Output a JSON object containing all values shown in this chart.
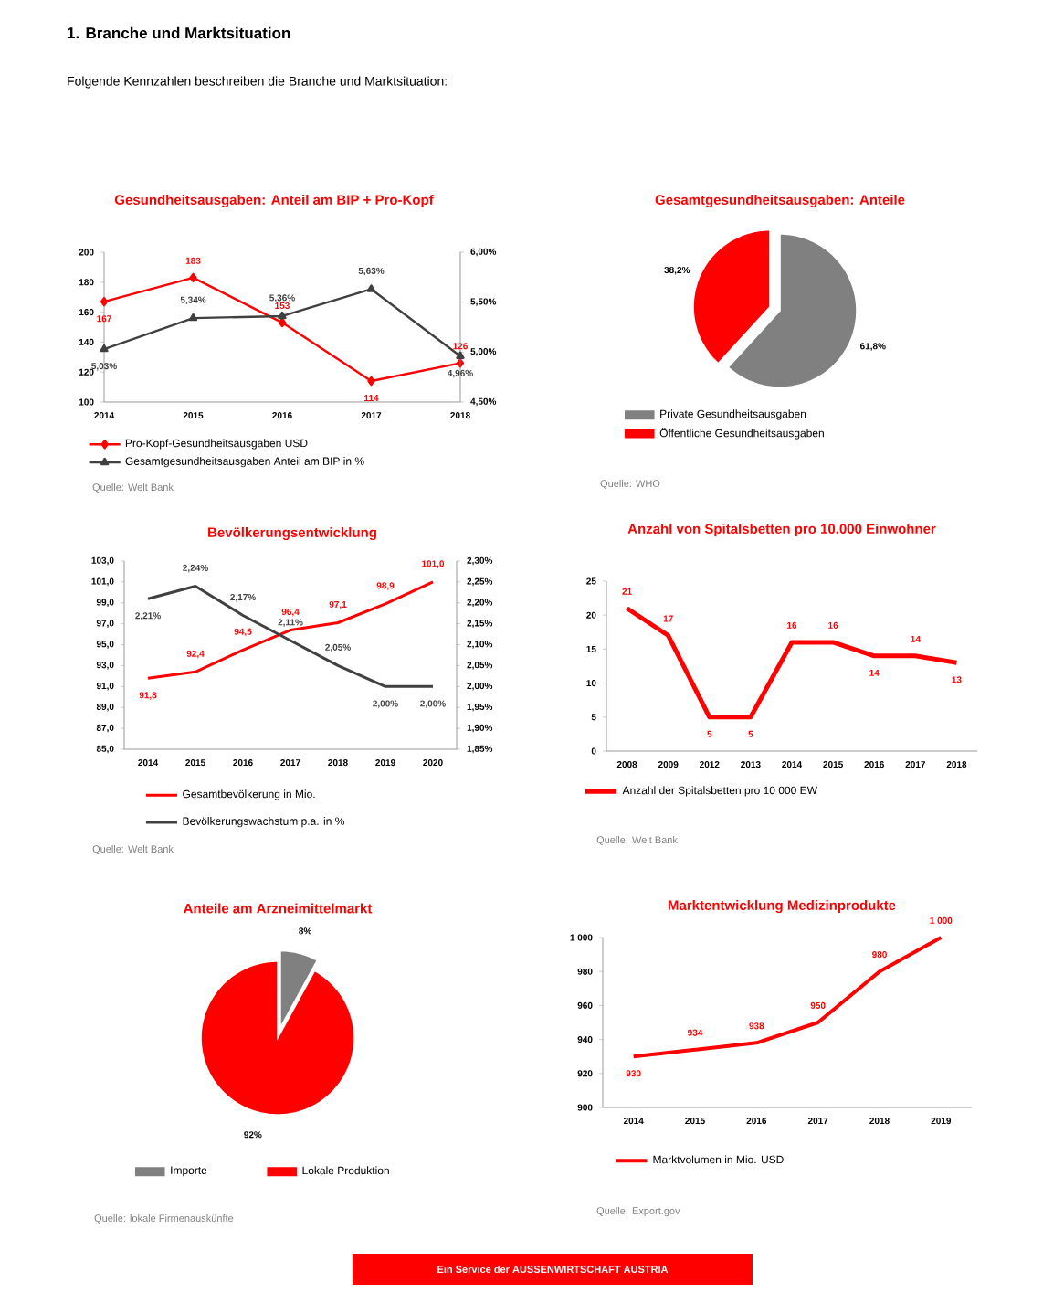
{
  "chart_data": [
    {
      "type": "other",
      "title": "1. Branche und Marktsituation",
      "subtitle": "Folgende Kennzahlen beschreiben die Branche und Marktsituation:"
    },
    {
      "type": "line",
      "title": "Gesundheitsausgaben: Anteil am BIP + Pro-Kopf",
      "categories": [
        "2014",
        "2015",
        "2016",
        "2017",
        "2018"
      ],
      "series": [
        {
          "name": "Pro-Kopf-Gesundheitsausgaben USD",
          "color": "#ff0000",
          "marker": "diamond",
          "values": [
            167,
            183,
            153,
            114,
            126
          ],
          "value_labels": [
            "167",
            "183",
            "153",
            "114",
            "126"
          ]
        },
        {
          "name": "Gesamtgesundheitsausgaben Anteil am BIP in %",
          "color": "#404040",
          "marker": "triangle",
          "axis": "y2",
          "values": [
            5.03,
            5.34,
            5.36,
            5.63,
            4.96
          ],
          "value_labels": [
            "5,03%",
            "5,34%",
            "5,36%",
            "5,63%",
            "4,96%"
          ]
        }
      ],
      "ylim": [
        100,
        200
      ],
      "yticks": [
        100,
        120,
        140,
        160,
        180,
        200
      ],
      "y2lim": [
        4.5,
        6.0
      ],
      "y2ticks": [
        {
          "value": 4.5,
          "label": "4,50%"
        },
        {
          "value": 5.0,
          "label": "5,00%"
        },
        {
          "value": 5.5,
          "label": "5,50%"
        },
        {
          "value": 6.0,
          "label": "6,00%"
        }
      ],
      "legend": "bottom",
      "annotations": [
        "Quelle: Welt Bank"
      ]
    },
    {
      "type": "pie",
      "title": "Gesamtgesundheitsausgaben: Anteile",
      "categories": [
        "Private Gesundheitsausgaben",
        "Öffentliche Gesundheitsausgaben"
      ],
      "values": [
        61.8,
        38.2
      ],
      "colors": [
        "#808080",
        "#ff0000"
      ],
      "value_labels": [
        "61,8%",
        "38,2%"
      ],
      "legend": "bottom",
      "annotations": [
        "Quelle: WHO"
      ]
    },
    {
      "type": "line",
      "title": "Bevölkerungsentwicklung",
      "categories": [
        "2014",
        "2015",
        "2016",
        "2017",
        "2018",
        "2019",
        "2020"
      ],
      "series": [
        {
          "name": "Gesamtbevölkerung in Mio.",
          "color": "#ff0000",
          "values": [
            91.8,
            92.4,
            94.5,
            96.4,
            97.1,
            98.9,
            101.0
          ],
          "value_labels": [
            "91,8",
            "92,4",
            "94,5",
            "96,4",
            "97,1",
            "98,9",
            "101,0"
          ]
        },
        {
          "name": "Bevölkerungswachstum p.a. in %",
          "color": "#404040",
          "axis": "y2",
          "values": [
            2.21,
            2.24,
            2.17,
            2.11,
            2.05,
            2.0,
            2.0
          ],
          "value_labels": [
            "2,21%",
            "2,24%",
            "2,17%",
            "2,11%",
            "2,05%",
            "2,00%",
            "2,00%"
          ]
        }
      ],
      "ylim": [
        85,
        103
      ],
      "yticks": [
        {
          "value": 85,
          "label": "85,0"
        },
        {
          "value": 87,
          "label": "87,0"
        },
        {
          "value": 89,
          "label": "89,0"
        },
        {
          "value": 91,
          "label": "91,0"
        },
        {
          "value": 93,
          "label": "93,0"
        },
        {
          "value": 95,
          "label": "95,0"
        },
        {
          "value": 97,
          "label": "97,0"
        },
        {
          "value": 99,
          "label": "99,0"
        },
        {
          "value": 101,
          "label": "101,0"
        },
        {
          "value": 103,
          "label": "103,0"
        }
      ],
      "y2lim": [
        1.85,
        2.3
      ],
      "y2ticks": [
        {
          "value": 1.85,
          "label": "1,85%"
        },
        {
          "value": 1.9,
          "label": "1,90%"
        },
        {
          "value": 1.95,
          "label": "1,95%"
        },
        {
          "value": 2.0,
          "label": "2,00%"
        },
        {
          "value": 2.05,
          "label": "2,05%"
        },
        {
          "value": 2.1,
          "label": "2,10%"
        },
        {
          "value": 2.15,
          "label": "2,15%"
        },
        {
          "value": 2.2,
          "label": "2,20%"
        },
        {
          "value": 2.25,
          "label": "2,25%"
        },
        {
          "value": 2.3,
          "label": "2,30%"
        }
      ],
      "legend": "bottom",
      "annotations": [
        "Quelle: Welt Bank"
      ]
    },
    {
      "type": "line",
      "title": "Anzahl von Spitalsbetten pro 10.000 Einwohner",
      "categories": [
        "2008",
        "2009",
        "2012",
        "2013",
        "2014",
        "2015",
        "2016",
        "2017",
        "2018"
      ],
      "series": [
        {
          "name": "Anzahl der Spitalsbetten pro 10 000 EW",
          "color": "#ff0000",
          "values": [
            21,
            17,
            5,
            5,
            16,
            16,
            14,
            14,
            13
          ]
        }
      ],
      "ylim": [
        0,
        25
      ],
      "yticks": [
        0,
        5,
        10,
        15,
        20,
        25
      ],
      "data_labels": true,
      "legend": "bottom",
      "annotations": [
        "Quelle: Welt Bank"
      ]
    },
    {
      "type": "pie",
      "title": "Anteile am Arzneimittelmarkt",
      "categories": [
        "Importe",
        "Lokale Produktion"
      ],
      "values": [
        8,
        92
      ],
      "colors": [
        "#808080",
        "#ff0000"
      ],
      "value_labels": [
        "8%",
        "92%"
      ],
      "legend": "bottom",
      "annotations": [
        "Quelle: lokale Firmenauskünfte"
      ]
    },
    {
      "type": "line",
      "title": "Marktentwicklung Medizinprodukte",
      "categories": [
        "2014",
        "2015",
        "2016",
        "2017",
        "2018",
        "2019"
      ],
      "series": [
        {
          "name": "Marktvolumen in Mio. USD",
          "color": "#ff0000",
          "values": [
            930,
            934,
            938,
            950,
            980,
            1000
          ],
          "value_labels": [
            "930",
            "934",
            "938",
            "950",
            "980",
            "1 000"
          ]
        }
      ],
      "ylim": [
        900,
        1000
      ],
      "yticks": [
        900,
        920,
        940,
        960,
        980,
        {
          "value": 1000,
          "label": "1 000"
        }
      ],
      "legend": "bottom",
      "annotations": [
        "Quelle: Export.gov"
      ]
    },
    {
      "type": "other",
      "annotations": [
        "Ein Service der AUSSENWIRTSCHAFT AUSTRIA"
      ]
    }
  ]
}
